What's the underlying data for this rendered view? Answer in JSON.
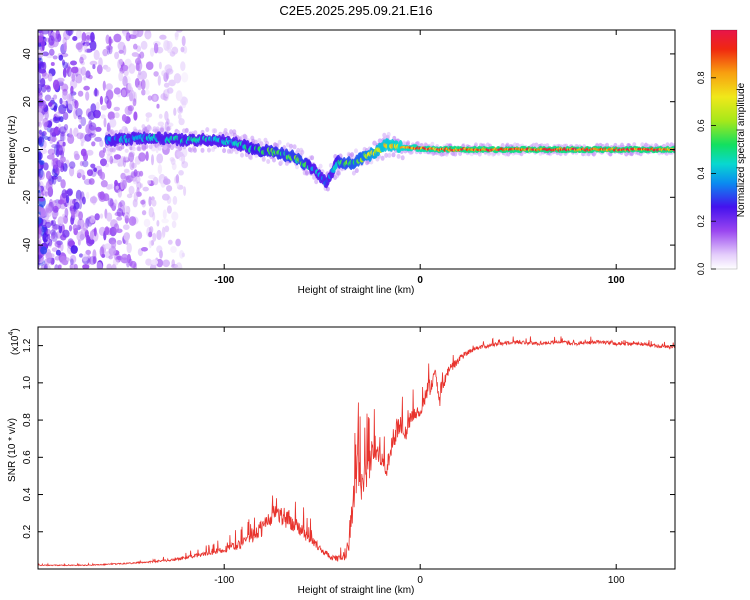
{
  "title": "C2E5.2025.295.09.21.E16",
  "chart_data": [
    {
      "type": "heatmap",
      "xlabel": "Height of straight line (km)",
      "ylabel": "Frequency (Hz)",
      "xlim": [
        -195,
        130
      ],
      "ylim": [
        -50,
        50
      ],
      "xticks": [
        -100,
        0,
        100
      ],
      "yticks": [
        -40,
        -20,
        0,
        20,
        40
      ],
      "colorbar": {
        "label": "Normalized spectral amplitude",
        "range": [
          0.0,
          1.0
        ],
        "ticks": [
          0.0,
          0.2,
          0.4,
          0.6,
          0.8
        ]
      },
      "ridge": {
        "description_points_km_hz": [
          [
            -158,
            4
          ],
          [
            -140,
            5
          ],
          [
            -120,
            4
          ],
          [
            -105,
            4
          ],
          [
            -95,
            3
          ],
          [
            -85,
            0
          ],
          [
            -75,
            -1
          ],
          [
            -65,
            -3
          ],
          [
            -55,
            -8
          ],
          [
            -48,
            -14
          ],
          [
            -42,
            -5
          ],
          [
            -35,
            -6
          ],
          [
            -28,
            -3
          ],
          [
            -22,
            -1
          ],
          [
            -18,
            2
          ],
          [
            -10,
            1
          ],
          [
            0,
            0.5
          ],
          [
            10,
            0
          ],
          [
            50,
            0
          ],
          [
            100,
            0
          ],
          [
            130,
            0
          ]
        ],
        "amplitude_points": [
          [
            -158,
            0.35
          ],
          [
            -120,
            0.45
          ],
          [
            -100,
            0.4
          ],
          [
            -80,
            0.5
          ],
          [
            -60,
            0.55
          ],
          [
            -48,
            0.3
          ],
          [
            -40,
            0.55
          ],
          [
            -30,
            0.6
          ],
          [
            -20,
            0.75
          ],
          [
            0,
            0.85
          ],
          [
            20,
            0.9
          ],
          [
            130,
            0.9
          ]
        ]
      }
    },
    {
      "type": "line",
      "xlabel": "Height of straight line (km)",
      "ylabel": "SNR (10 * v/v)",
      "scale_label": "(x10",
      "scale_exponent": "4",
      "xlim": [
        -195,
        130
      ],
      "ylim": [
        0.0,
        1.3
      ],
      "xticks": [
        -100,
        0,
        100
      ],
      "yticks": [
        0.2,
        0.4,
        0.6,
        0.8,
        1.0,
        1.2
      ],
      "ytick_labels": [
        "0.2",
        "0.4",
        "0.6",
        "0.8",
        "1.0",
        "1.2"
      ],
      "series": [
        {
          "name": "SNR",
          "color": "#e8332d",
          "x": [
            -195,
            -170,
            -150,
            -135,
            -125,
            -115,
            -105,
            -95,
            -90,
            -85,
            -80,
            -75,
            -70,
            -65,
            -60,
            -55,
            -50,
            -45,
            -40,
            -37,
            -35,
            -32,
            -30,
            -27,
            -25,
            -22,
            -20,
            -17,
            -15,
            -12,
            -10,
            -7,
            -5,
            -3,
            0,
            3,
            5,
            8,
            10,
            12,
            15,
            18,
            20,
            25,
            30,
            40,
            50,
            60,
            70,
            80,
            90,
            100,
            110,
            120,
            130
          ],
          "values": [
            0.02,
            0.02,
            0.03,
            0.04,
            0.05,
            0.07,
            0.09,
            0.12,
            0.14,
            0.18,
            0.22,
            0.3,
            0.28,
            0.25,
            0.2,
            0.15,
            0.1,
            0.06,
            0.05,
            0.1,
            0.3,
            0.55,
            0.45,
            0.5,
            0.6,
            0.68,
            0.62,
            0.55,
            0.66,
            0.74,
            0.78,
            0.72,
            0.8,
            0.85,
            0.83,
            0.95,
            0.98,
            1.05,
            0.9,
            1.0,
            1.08,
            1.1,
            1.13,
            1.17,
            1.19,
            1.21,
            1.22,
            1.21,
            1.22,
            1.21,
            1.22,
            1.21,
            1.21,
            1.2,
            1.19
          ],
          "noise_amplitude": [
            0.005,
            0.005,
            0.008,
            0.01,
            0.015,
            0.02,
            0.03,
            0.05,
            0.06,
            0.08,
            0.12,
            0.12,
            0.12,
            0.1,
            0.08,
            0.06,
            0.04,
            0.03,
            0.04,
            0.12,
            0.2,
            0.22,
            0.18,
            0.2,
            0.18,
            0.2,
            0.16,
            0.14,
            0.14,
            0.12,
            0.1,
            0.1,
            0.1,
            0.09,
            0.08,
            0.1,
            0.1,
            0.1,
            0.08,
            0.08,
            0.06,
            0.05,
            0.04,
            0.03,
            0.025,
            0.02,
            0.02,
            0.02,
            0.02,
            0.02,
            0.02,
            0.025,
            0.02,
            0.02,
            0.02
          ]
        }
      ]
    }
  ]
}
